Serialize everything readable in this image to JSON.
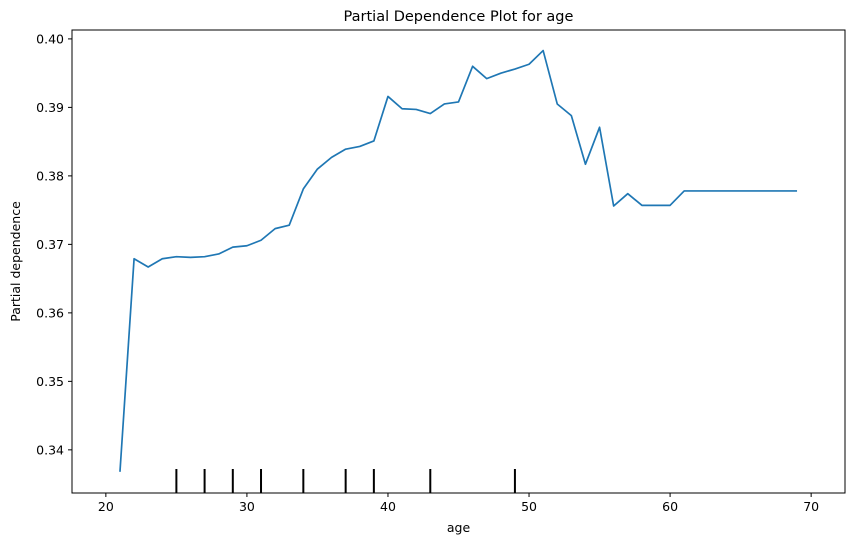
{
  "chart_data": {
    "type": "line",
    "title": "Partial Dependence Plot for age",
    "xlabel": "age",
    "ylabel": "Partial dependence",
    "xlim": [
      17.6,
      72.4
    ],
    "ylim": [
      0.3337,
      0.4013
    ],
    "xticks": [
      20,
      30,
      40,
      50,
      60,
      70
    ],
    "yticks": [
      0.34,
      0.35,
      0.36,
      0.37,
      0.38,
      0.39,
      0.4
    ],
    "ytick_labels": [
      "0.34",
      "0.35",
      "0.36",
      "0.37",
      "0.38",
      "0.39",
      "0.40"
    ],
    "grid": false,
    "line_color": "#1f77b4",
    "rug_color": "#000000",
    "series": [
      {
        "x": [
          21,
          22,
          23,
          24,
          25,
          26,
          27,
          28,
          29,
          30,
          31,
          32,
          33,
          34,
          35,
          36,
          37,
          38,
          39,
          40,
          41,
          42,
          43,
          44,
          45,
          46,
          47,
          48,
          49,
          50,
          51,
          52,
          53,
          54,
          55,
          56,
          57,
          58,
          59,
          60,
          61,
          62,
          63,
          64,
          65,
          66,
          67,
          68,
          69
        ],
        "values": [
          0.3368,
          0.3679,
          0.3667,
          0.3679,
          0.3682,
          0.3681,
          0.3682,
          0.3686,
          0.3696,
          0.3698,
          0.3706,
          0.3723,
          0.3728,
          0.3781,
          0.381,
          0.3827,
          0.3839,
          0.3843,
          0.3851,
          0.3916,
          0.3898,
          0.3897,
          0.3891,
          0.3905,
          0.3908,
          0.396,
          0.3942,
          0.395,
          0.3956,
          0.3963,
          0.3983,
          0.3905,
          0.3888,
          0.3817,
          0.3871,
          0.3756,
          0.3774,
          0.3757,
          0.3757,
          0.3757,
          0.3778,
          0.3778,
          0.3778,
          0.3778,
          0.3778,
          0.3778,
          0.3778,
          0.3778,
          0.3778
        ]
      }
    ],
    "deciles": [
      25,
      27,
      29,
      31,
      34,
      37,
      39,
      43,
      49
    ]
  }
}
